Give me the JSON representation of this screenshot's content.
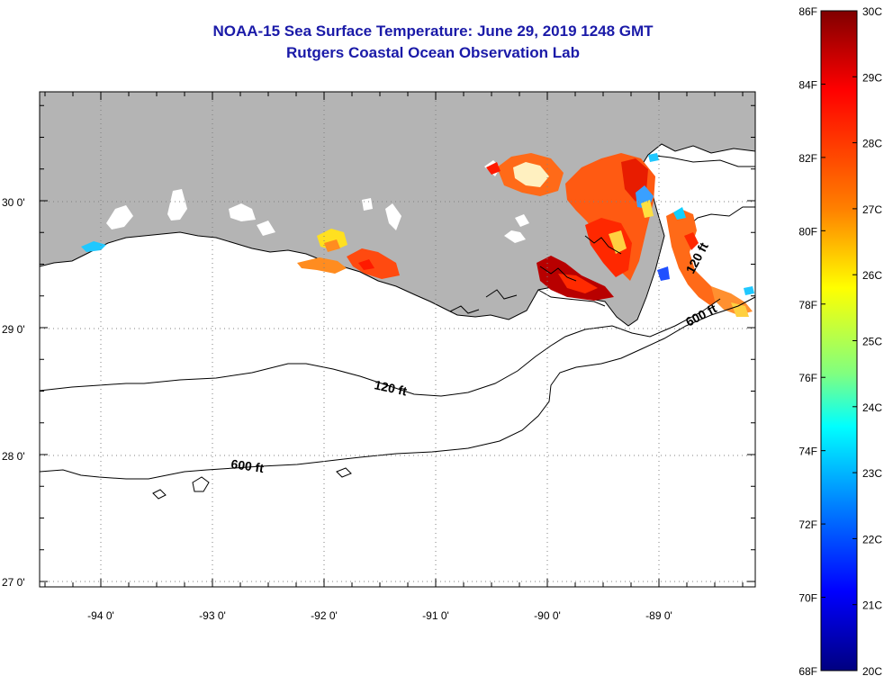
{
  "title": {
    "line1": "NOAA-15 Sea Surface Temperature:  June 29, 2019 1248 GMT",
    "line2": "Rutgers Coastal Ocean Observation Lab"
  },
  "map": {
    "lat_labels": [
      "30 0'",
      "29 0'",
      "28 0'",
      "27 0'"
    ],
    "lon_labels": [
      "-94 0'",
      "-93 0'",
      "-92 0'",
      "-91 0'",
      "-90 0'",
      "-89 0'"
    ],
    "contours": [
      {
        "label": "120 ft"
      },
      {
        "label": "600 ft"
      },
      {
        "label": "120 ft"
      },
      {
        "label": "600 ft"
      }
    ],
    "colors": {
      "land": "#b4b4b4",
      "ocean": "#ffffff",
      "title": "#1a1aa8"
    }
  },
  "colorbar": {
    "f_labels": [
      "86F",
      "84F",
      "82F",
      "80F",
      "78F",
      "76F",
      "74F",
      "72F",
      "70F",
      "68F"
    ],
    "c_labels": [
      "30C",
      "29C",
      "28C",
      "27C",
      "26C",
      "25C",
      "24C",
      "23C",
      "22C",
      "21C",
      "20C"
    ],
    "range_f": [
      68,
      86
    ],
    "range_c": [
      20,
      30
    ],
    "stops": [
      "#800000",
      "#ff0000",
      "#ff8000",
      "#ffff00",
      "#80ff80",
      "#00ffff",
      "#0080ff",
      "#0000ff",
      "#000080"
    ]
  }
}
